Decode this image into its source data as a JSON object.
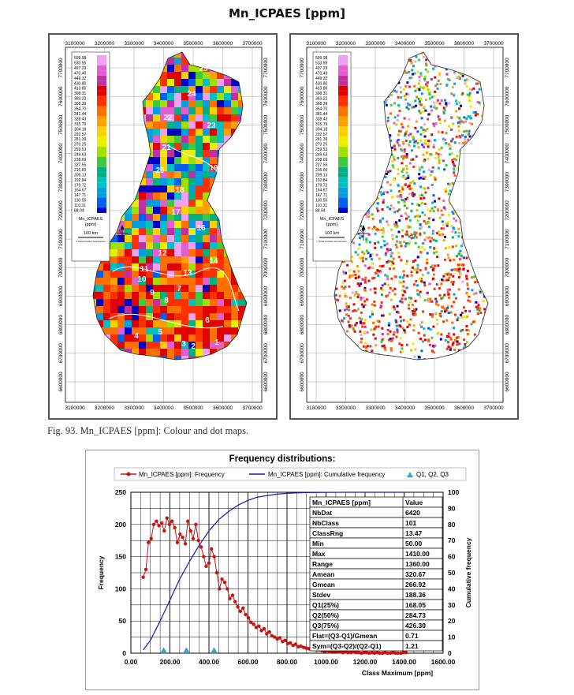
{
  "page_title": "Mn_ICPAES [ppm]",
  "caption": "Fig. 93. Mn_ICPAES [ppm]: Colour and dot maps.",
  "maps": {
    "x_ticks": [
      "3100000",
      "3200000",
      "3300000",
      "3400000",
      "3500000",
      "3600000",
      "3700000"
    ],
    "y_ticks": [
      "7700000",
      "7600000",
      "7500000",
      "7400000",
      "7300000",
      "7200000",
      "7100000",
      "7000000",
      "6900000",
      "6800000",
      "6700000",
      "6600000"
    ],
    "legend_values": [
      "599.98",
      "533.55",
      "497.29",
      "470.49",
      "449.32",
      "430.80",
      "413.86",
      "398.31",
      "383.22",
      "368.39",
      "354.70",
      "341.44",
      "328.43",
      "315.79",
      "304.18",
      "292.57",
      "281.39",
      "270.25",
      "259.53",
      "249.63",
      "238.69",
      "227.55",
      "216.60",
      "205.13",
      "192.84",
      "179.72",
      "164.67",
      "147.71",
      "130.55",
      "110.31",
      "88.94"
    ],
    "legend_title": "Mn_ICPAES",
    "legend_unit": "[ppm]",
    "scale_label": "100 km",
    "legend_footer": "© Finland Surface Geochemistry",
    "north_label": "N",
    "zone_numbers": [
      "25",
      "24",
      "22",
      "23",
      "21",
      "20",
      "19",
      "18",
      "17",
      "16",
      "15",
      "14",
      "13",
      "12",
      "11",
      "10",
      "9",
      "8",
      "7",
      "6",
      "5",
      "4",
      "3",
      "2",
      "1"
    ]
  },
  "chart": {
    "title": "Frequency distributions:",
    "legend": {
      "frequency": "Mn_ICPAES [ppm]: Frequency",
      "cumulative": "Mn_ICPAES [ppm]: Cumulative frequency",
      "quartiles": "Q1, Q2, Q3"
    },
    "colors": {
      "frequency": "#cc1111",
      "cumulative": "#1a1aaa",
      "quartiles": "#33aacc"
    },
    "xlabel": "Class Maximum [ppm]",
    "ylabel_left": "Frequency",
    "ylabel_right": "Cumulative frequency",
    "x_tick_labels": [
      "0.00",
      "200.00",
      "400.00",
      "600.00",
      "800.00",
      "1000.00",
      "1200.00",
      "1400.00",
      "1600.00"
    ],
    "y_left_tick_labels": [
      "0",
      "50",
      "100",
      "150",
      "200",
      "250"
    ],
    "y_right_tick_labels": [
      "0",
      "10",
      "20",
      "30",
      "40",
      "50",
      "60",
      "70",
      "80",
      "90",
      "100"
    ],
    "stats": {
      "header": [
        "Mn_ICPAES [ppm]",
        "Value"
      ],
      "rows": [
        [
          "NbDat",
          "6420"
        ],
        [
          "NbClass",
          "101"
        ],
        [
          "ClassRng",
          "13.47"
        ],
        [
          "Min",
          "50.00"
        ],
        [
          "Max",
          "1410.00"
        ],
        [
          "Range",
          "1360.00"
        ],
        [
          "Amean",
          "320.67"
        ],
        [
          "Gmean",
          "266.92"
        ],
        [
          "Stdev",
          "188.36"
        ],
        [
          "Q1(25%)",
          "168.05"
        ],
        [
          "Q2(50%)",
          "284.73"
        ],
        [
          "Q3(75%)",
          "426.30"
        ],
        [
          "Flat=(Q3-Q1)/Gmean",
          "0.71"
        ],
        [
          "Sym=(Q3-Q2)/(Q2-Q1)",
          "1.21"
        ]
      ]
    }
  },
  "chart_data": {
    "type": "line",
    "title": "Frequency distributions:",
    "xlabel": "Class Maximum [ppm]",
    "ylabel": "Frequency",
    "y2label": "Cumulative frequency",
    "xlim": [
      0,
      1600
    ],
    "ylim": [
      0,
      250
    ],
    "y2lim": [
      0,
      100
    ],
    "grid": true,
    "legend_position": "top",
    "series": [
      {
        "name": "Mn_ICPAES [ppm]: Frequency",
        "axis": "left",
        "x": [
          63,
          77,
          90,
          104,
          117,
          131,
          144,
          158,
          171,
          185,
          198,
          211,
          225,
          238,
          252,
          265,
          279,
          292,
          306,
          319,
          333,
          346,
          360,
          373,
          386,
          400,
          413,
          427,
          440,
          454,
          467,
          481,
          494,
          507,
          521,
          534,
          548,
          561,
          575,
          588,
          602,
          615,
          629,
          642,
          656,
          669,
          683,
          696,
          710,
          723,
          736,
          750,
          763,
          777,
          790,
          804,
          817,
          831,
          844,
          858,
          871,
          885,
          898,
          911,
          925,
          938,
          952,
          965,
          979,
          992,
          1006,
          1019,
          1033,
          1046,
          1060,
          1073,
          1087,
          1100,
          1113,
          1127,
          1140,
          1154,
          1167,
          1181,
          1194,
          1208,
          1221,
          1235,
          1248,
          1262,
          1275,
          1289,
          1302,
          1315,
          1329,
          1342,
          1356,
          1369,
          1383,
          1396,
          1410
        ],
        "y": [
          118,
          130,
          172,
          178,
          200,
          205,
          198,
          202,
          190,
          210,
          200,
          205,
          195,
          172,
          185,
          180,
          170,
          205,
          190,
          178,
          200,
          175,
          165,
          150,
          135,
          140,
          162,
          150,
          125,
          100,
          115,
          110,
          100,
          85,
          90,
          80,
          72,
          65,
          70,
          60,
          55,
          48,
          45,
          40,
          42,
          35,
          38,
          30,
          33,
          27,
          25,
          22,
          24,
          18,
          20,
          15,
          16,
          12,
          14,
          10,
          11,
          9,
          8,
          7,
          8,
          6,
          5,
          5,
          4,
          3,
          4,
          2,
          3,
          3,
          2,
          2,
          1,
          2,
          1,
          1,
          2,
          1,
          1,
          0,
          1,
          1,
          0,
          1,
          0,
          1,
          0,
          0,
          1,
          0,
          0,
          1,
          0,
          0,
          0,
          1,
          1
        ]
      },
      {
        "name": "Mn_ICPAES [ppm]: Cumulative frequency",
        "axis": "right",
        "x": [
          63,
          100,
          150,
          200,
          250,
          300,
          350,
          400,
          450,
          500,
          550,
          600,
          650,
          700,
          750,
          800,
          850,
          900,
          1000,
          1100,
          1200,
          1410
        ],
        "y": [
          2,
          8,
          20,
          33,
          46,
          57,
          67,
          76,
          83,
          88,
          92,
          95,
          97,
          98,
          98.8,
          99.3,
          99.6,
          99.8,
          99.9,
          100,
          100,
          100
        ]
      },
      {
        "name": "Q1, Q2, Q3",
        "axis": "left",
        "x": [
          168.05,
          284.73,
          426.3
        ],
        "y": [
          0,
          0,
          0
        ]
      }
    ]
  }
}
